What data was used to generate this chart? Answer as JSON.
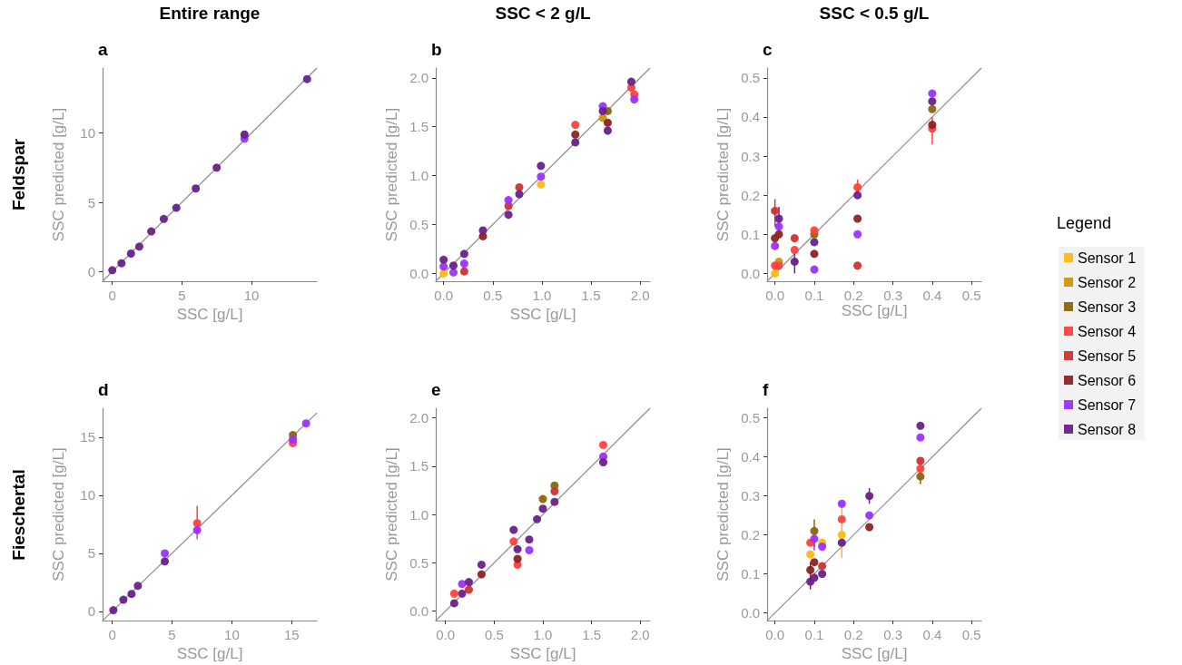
{
  "chart_data": [
    {
      "type": "scatter",
      "title": "Entire range",
      "subtitle": "a",
      "annotations": [
        "Feldspar"
      ],
      "xlabel": "SSC [g/L]",
      "ylabel": "SSC predicted [g/L]",
      "xlim": [
        -0.7,
        14.7
      ],
      "ylim": [
        -0.7,
        14.7
      ],
      "xticks": [
        0,
        5,
        10
      ],
      "yticks": [
        0,
        5,
        10
      ],
      "grid": false,
      "legend": false,
      "marker": "circle",
      "x": [
        0,
        0.66,
        1.34,
        1.94,
        2.8,
        3.7,
        4.6,
        6.0,
        7.5,
        9.5,
        14.0
      ],
      "series": [
        {
          "color": "#8b2323",
          "values": [
            null,
            null,
            null,
            null,
            null,
            null,
            null,
            null,
            null,
            null,
            null
          ]
        },
        {
          "color": "#9b30ff",
          "values": [
            null,
            null,
            null,
            null,
            null,
            null,
            null,
            null,
            null,
            9.6,
            null
          ]
        },
        {
          "color": "#68228b",
          "values": [
            0.1,
            0.6,
            1.3,
            1.8,
            2.9,
            3.8,
            4.6,
            6.0,
            7.5,
            9.9,
            13.9
          ]
        },
        {
          "type": "line",
          "marker": "none",
          "color": "#8c8c8c",
          "x": [
            -0.7,
            14.7
          ],
          "values": [
            -0.7,
            14.7
          ]
        }
      ]
    },
    {
      "type": "scatter",
      "title": "SSC < 2 g/L",
      "subtitle": "b",
      "xlabel": "SSC [g/L]",
      "ylabel": "SSC predicted [g/L]",
      "xlim": [
        -0.08,
        2.1
      ],
      "ylim": [
        -0.08,
        2.1
      ],
      "xticks": [
        {
          "value": 0,
          "label": "0.0"
        },
        {
          "value": 0.5,
          "label": "0.5"
        },
        {
          "value": 1,
          "label": "1.0"
        },
        {
          "value": 1.5,
          "label": "1.5"
        },
        {
          "value": 2,
          "label": "2.0"
        }
      ],
      "yticks": [
        {
          "value": 0,
          "label": "0.0"
        },
        {
          "value": 0.5,
          "label": "0.5"
        },
        {
          "value": 1,
          "label": "1.0"
        },
        {
          "value": 1.5,
          "label": "1.5"
        },
        {
          "value": 2,
          "label": "2.0"
        }
      ],
      "grid": false,
      "legend": false,
      "marker": "circle",
      "x": [
        0,
        0.1,
        0.21,
        0.4,
        0.66,
        0.77,
        0.99,
        1.34,
        1.62,
        1.67,
        1.91,
        1.94
      ],
      "series": [
        {
          "color": "#ffb90f",
          "values": [
            0.0,
            null,
            null,
            null,
            null,
            null,
            0.91,
            null,
            null,
            null,
            null,
            null
          ]
        },
        {
          "color": "#cd950c",
          "values": [
            null,
            null,
            null,
            null,
            null,
            null,
            null,
            null,
            1.59,
            null,
            null,
            null
          ]
        },
        {
          "color": "#8b6508",
          "values": [
            null,
            null,
            null,
            null,
            null,
            null,
            null,
            null,
            null,
            1.66,
            null,
            null
          ]
        },
        {
          "color": "#ff4040",
          "values": [
            null,
            null,
            null,
            null,
            null,
            null,
            null,
            1.52,
            null,
            null,
            1.9,
            1.83
          ]
        },
        {
          "color": "#cd3333",
          "values": [
            null,
            null,
            0.02,
            null,
            0.69,
            0.88,
            null,
            null,
            null,
            null,
            null,
            null
          ]
        },
        {
          "color": "#8b2323",
          "values": [
            null,
            null,
            null,
            0.38,
            null,
            null,
            null,
            1.42,
            null,
            1.54,
            null,
            null
          ]
        },
        {
          "color": "#9b30ff",
          "values": [
            0.07,
            0.01,
            0.1,
            null,
            0.75,
            null,
            0.99,
            null,
            1.71,
            null,
            null,
            1.78
          ]
        },
        {
          "color": "#68228b",
          "values": [
            0.14,
            0.08,
            0.2,
            0.44,
            0.6,
            0.81,
            1.1,
            1.34,
            1.66,
            1.46,
            1.96,
            null
          ]
        },
        {
          "type": "line",
          "marker": "none",
          "color": "#8c8c8c",
          "x": [
            -0.08,
            2.1
          ],
          "values": [
            -0.08,
            2.1
          ]
        }
      ]
    },
    {
      "type": "scatter",
      "title": "SSC < 0.5 g/L",
      "subtitle": "c",
      "xlabel": "SSC [g/L]",
      "ylabel": "SSC predicted [g/L]",
      "legend_title": "Legend",
      "xlim": [
        -0.02,
        0.525
      ],
      "ylim": [
        -0.02,
        0.525
      ],
      "xticks": [
        {
          "value": 0,
          "label": "0.0"
        },
        {
          "value": 0.1,
          "label": "0.1"
        },
        {
          "value": 0.2,
          "label": "0.2"
        },
        {
          "value": 0.3,
          "label": "0.3"
        },
        {
          "value": 0.4,
          "label": "0.4"
        },
        {
          "value": 0.5,
          "label": "0.5"
        }
      ],
      "yticks": [
        {
          "value": 0,
          "label": "0.0"
        },
        {
          "value": 0.1,
          "label": "0.1"
        },
        {
          "value": 0.2,
          "label": "0.2"
        },
        {
          "value": 0.3,
          "label": "0.3"
        },
        {
          "value": 0.4,
          "label": "0.4"
        },
        {
          "value": 0.5,
          "label": "0.5"
        }
      ],
      "grid": false,
      "legend": "right",
      "marker": "circle",
      "x": [
        0,
        0.01,
        0.05,
        0.1,
        0.21,
        0.4
      ],
      "series": [
        {
          "name": "Sensor 1",
          "color": "#ffb90f",
          "values": [
            0.0,
            null,
            null,
            null,
            null,
            null
          ]
        },
        {
          "name": "Sensor 2",
          "color": "#cd950c",
          "values": [
            null,
            0.03,
            null,
            null,
            null,
            null
          ]
        },
        {
          "name": "Sensor 3",
          "color": "#8b6508",
          "values": [
            null,
            null,
            null,
            0.1,
            null,
            0.42
          ]
        },
        {
          "name": "Sensor 4",
          "color": "#ff4040",
          "values": [
            0.02,
            0.02,
            0.06,
            0.11,
            0.22,
            0.37
          ],
          "errors": [
            null,
            null,
            null,
            null,
            [
              0.21,
              0.24
            ],
            [
              0.33,
              0.4
            ]
          ]
        },
        {
          "name": "Sensor 5",
          "color": "#cd3333",
          "values": [
            0.16,
            null,
            0.09,
            null,
            0.02,
            null
          ],
          "errors": [
            [
              0.12,
              0.19
            ],
            null,
            null,
            null,
            null,
            null
          ]
        },
        {
          "name": "Sensor 6",
          "color": "#8b2323",
          "values": [
            0.09,
            0.1,
            null,
            0.05,
            0.14,
            0.38
          ]
        },
        {
          "name": "Sensor 7",
          "color": "#9b30ff",
          "values": [
            0.07,
            0.12,
            null,
            0.01,
            0.1,
            0.46
          ]
        },
        {
          "name": "Sensor 8",
          "color": "#68228b",
          "values": [
            null,
            0.14,
            0.03,
            0.08,
            0.2,
            0.44
          ],
          "errors": [
            null,
            [
              0.1,
              0.17
            ],
            [
              0.0,
              0.05
            ],
            null,
            null,
            null
          ]
        },
        {
          "type": "line",
          "marker": "none",
          "color": "#8c8c8c",
          "x": [
            -0.02,
            0.525
          ],
          "values": [
            -0.02,
            0.525
          ]
        }
      ]
    },
    {
      "type": "scatter",
      "subtitle": "d",
      "annotations": [
        "Fieschertal"
      ],
      "xlabel": "SSC [g/L]",
      "ylabel": "SSC predicted [g/L]",
      "xlim": [
        -0.8,
        17.1
      ],
      "ylim": [
        -0.8,
        17.5
      ],
      "xticks": [
        0,
        5,
        10,
        15
      ],
      "yticks": [
        0,
        5,
        10,
        15
      ],
      "grid": false,
      "legend": false,
      "marker": "circle",
      "x": [
        0.1,
        0.94,
        1.62,
        2.15,
        4.4,
        7.1,
        15.1,
        16.2
      ],
      "series": [
        {
          "color": "#8b6508",
          "values": [
            null,
            null,
            null,
            null,
            null,
            null,
            15.2,
            null
          ]
        },
        {
          "color": "#ff4040",
          "values": [
            null,
            null,
            null,
            null,
            null,
            7.6,
            14.5,
            null
          ],
          "errors": [
            null,
            null,
            null,
            null,
            null,
            [
              6.2,
              9.1
            ],
            null,
            null
          ]
        },
        {
          "color": "#9b30ff",
          "values": [
            null,
            null,
            null,
            null,
            5.0,
            7.0,
            14.8,
            16.2
          ]
        },
        {
          "color": "#68228b",
          "values": [
            0.1,
            1.0,
            1.5,
            2.2,
            4.3,
            null,
            null,
            null
          ]
        },
        {
          "type": "line",
          "marker": "none",
          "color": "#8c8c8c",
          "x": [
            -0.8,
            17.1
          ],
          "values": [
            -0.8,
            17.1
          ]
        }
      ]
    },
    {
      "type": "scatter",
      "subtitle": "e",
      "xlabel": "SSC [g/L]",
      "ylabel": "SSC predicted [g/L]",
      "xlim": [
        -0.1,
        2.1
      ],
      "ylim": [
        -0.1,
        2.1
      ],
      "xticks": [
        {
          "value": 0,
          "label": "0.0"
        },
        {
          "value": 0.5,
          "label": "0.5"
        },
        {
          "value": 1,
          "label": "1.0"
        },
        {
          "value": 1.5,
          "label": "1.5"
        },
        {
          "value": 2,
          "label": "2.0"
        }
      ],
      "yticks": [
        {
          "value": 0,
          "label": "0.0"
        },
        {
          "value": 0.5,
          "label": "0.5"
        },
        {
          "value": 1,
          "label": "1.0"
        },
        {
          "value": 1.5,
          "label": "1.5"
        },
        {
          "value": 2,
          "label": "2.0"
        }
      ],
      "grid": false,
      "legend": false,
      "marker": "circle",
      "x": [
        0.09,
        0.17,
        0.24,
        0.37,
        0.7,
        0.74,
        0.86,
        0.94,
        1.0,
        1.12,
        1.62
      ],
      "series": [
        {
          "color": "#8b6508",
          "values": [
            null,
            null,
            null,
            null,
            null,
            null,
            null,
            null,
            1.16,
            1.3,
            null
          ]
        },
        {
          "color": "#ff4040",
          "values": [
            0.18,
            null,
            null,
            null,
            0.72,
            0.48,
            null,
            null,
            null,
            null,
            1.72
          ]
        },
        {
          "color": "#cd3333",
          "values": [
            null,
            null,
            0.22,
            null,
            null,
            null,
            null,
            null,
            null,
            1.24,
            null
          ]
        },
        {
          "color": "#8b2323",
          "values": [
            null,
            null,
            null,
            0.38,
            null,
            0.54,
            null,
            null,
            null,
            null,
            null
          ]
        },
        {
          "color": "#9b30ff",
          "values": [
            null,
            0.28,
            null,
            null,
            null,
            null,
            0.63,
            null,
            null,
            null,
            1.6
          ]
        },
        {
          "color": "#68228b",
          "values": [
            0.08,
            0.18,
            0.3,
            0.48,
            0.84,
            0.64,
            0.74,
            0.95,
            1.06,
            1.13,
            1.54
          ]
        },
        {
          "type": "line",
          "marker": "none",
          "color": "#8c8c8c",
          "x": [
            -0.1,
            2.1
          ],
          "values": [
            -0.1,
            2.1
          ]
        }
      ]
    },
    {
      "type": "scatter",
      "subtitle": "f",
      "xlabel": "SSC [g/L]",
      "ylabel": "SSC predicted [g/L]",
      "xlim": [
        -0.02,
        0.525
      ],
      "ylim": [
        -0.02,
        0.525
      ],
      "xticks": [
        {
          "value": 0,
          "label": "0.0"
        },
        {
          "value": 0.1,
          "label": "0.1"
        },
        {
          "value": 0.2,
          "label": "0.2"
        },
        {
          "value": 0.3,
          "label": "0.3"
        },
        {
          "value": 0.4,
          "label": "0.4"
        },
        {
          "value": 0.5,
          "label": "0.5"
        }
      ],
      "yticks": [
        {
          "value": 0,
          "label": "0.0"
        },
        {
          "value": 0.1,
          "label": "0.1"
        },
        {
          "value": 0.2,
          "label": "0.2"
        },
        {
          "value": 0.3,
          "label": "0.3"
        },
        {
          "value": 0.4,
          "label": "0.4"
        },
        {
          "value": 0.5,
          "label": "0.5"
        }
      ],
      "grid": false,
      "legend": false,
      "marker": "circle",
      "x": [
        0.09,
        0.1,
        0.12,
        0.17,
        0.24,
        0.37
      ],
      "series": [
        {
          "color": "#ffb90f",
          "values": [
            0.15,
            null,
            0.18,
            0.2,
            null,
            null
          ],
          "errors": [
            null,
            null,
            null,
            [
              0.14,
              0.28
            ],
            null,
            null
          ]
        },
        {
          "color": "#8b6508",
          "values": [
            null,
            0.21,
            null,
            null,
            null,
            0.35
          ],
          "errors": [
            null,
            [
              0.17,
              0.24
            ],
            null,
            null,
            null,
            [
              0.33,
              0.36
            ]
          ]
        },
        {
          "color": "#ff4040",
          "values": [
            0.18,
            null,
            null,
            0.24,
            null,
            0.37
          ]
        },
        {
          "color": "#cd3333",
          "values": [
            null,
            null,
            0.12,
            null,
            null,
            0.39
          ]
        },
        {
          "color": "#8b2323",
          "values": [
            0.11,
            0.13,
            null,
            null,
            0.22,
            null
          ],
          "errors": [
            [
              0.06,
              0.13
            ],
            null,
            null,
            null,
            null,
            null
          ]
        },
        {
          "color": "#9b30ff",
          "values": [
            null,
            0.19,
            0.17,
            0.28,
            0.25,
            0.45
          ],
          "errors": [
            null,
            [
              0.16,
              0.22
            ],
            null,
            null,
            null,
            null
          ]
        },
        {
          "color": "#68228b",
          "values": [
            0.08,
            0.09,
            0.1,
            0.18,
            0.3,
            0.48
          ],
          "errors": [
            null,
            null,
            null,
            null,
            [
              0.28,
              0.32
            ],
            null
          ]
        },
        {
          "type": "line",
          "marker": "none",
          "color": "#8c8c8c",
          "x": [
            -0.02,
            0.525
          ],
          "values": [
            -0.02,
            0.525
          ]
        }
      ]
    }
  ]
}
